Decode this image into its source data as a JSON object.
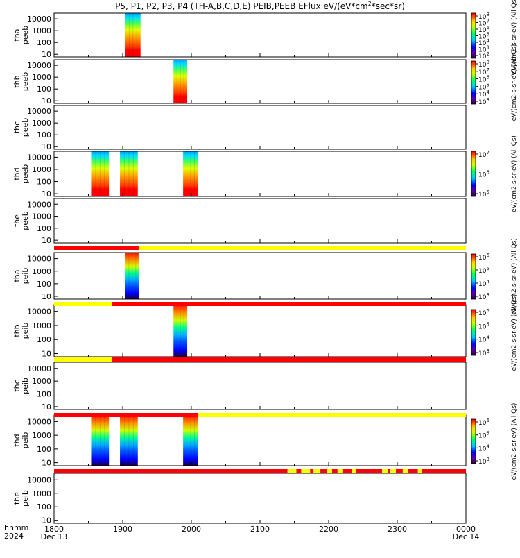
{
  "title": "P5, P1, P2, P3, P4 (TH-A,B,C,D,E) PEIB,PEEB EFlux eV/(eV*cm2*sec*sr)",
  "title_parts": {
    "main": "P5, P1, P2, P3, P4 (TH-A,B,C,D,E) PEIB,PEEB EFlux eV/(eV*cm",
    "sup": "2",
    "tail": "*sec*sr)"
  },
  "x_axis": {
    "corner_top": "hhmm",
    "corner_bottom": "2024",
    "range_hours": [
      18,
      24
    ],
    "ticks": [
      {
        "hour": 18,
        "label": "1800",
        "sublabel": "Dec 13"
      },
      {
        "hour": 19,
        "label": "1900",
        "sublabel": ""
      },
      {
        "hour": 20,
        "label": "2000",
        "sublabel": ""
      },
      {
        "hour": 21,
        "label": "2100",
        "sublabel": ""
      },
      {
        "hour": 22,
        "label": "2200",
        "sublabel": ""
      },
      {
        "hour": 23,
        "label": "2300",
        "sublabel": ""
      },
      {
        "hour": 24,
        "label": "0000",
        "sublabel": "Dec 14"
      }
    ]
  },
  "y_ticks": [
    "10000",
    "1000",
    "100",
    "10"
  ],
  "panels": [
    {
      "id": "tha-peeb",
      "probe": "tha",
      "species": "peeb",
      "bursts": [
        [
          19.04,
          19.26
        ]
      ]
    },
    {
      "id": "thb-peeb",
      "probe": "thb",
      "species": "peeb",
      "bursts": [
        [
          19.74,
          19.94
        ]
      ]
    },
    {
      "id": "thc-peeb",
      "probe": "thc",
      "species": "peeb",
      "bursts": []
    },
    {
      "id": "thd-peeb",
      "probe": "thd",
      "species": "peeb",
      "bursts": [
        [
          18.54,
          18.8
        ],
        [
          18.96,
          19.22
        ],
        [
          19.88,
          20.1
        ]
      ]
    },
    {
      "id": "the-peeb",
      "probe": "the",
      "species": "peeb",
      "bursts": []
    },
    {
      "id": "tha-peib",
      "probe": "tha",
      "species": "peib",
      "bursts": [
        [
          19.04,
          19.24
        ]
      ]
    },
    {
      "id": "thb-peib",
      "probe": "thb",
      "species": "peib",
      "bursts": [
        [
          19.74,
          19.94
        ]
      ]
    },
    {
      "id": "thc-peib",
      "probe": "thc",
      "species": "peib",
      "bursts": []
    },
    {
      "id": "thd-peib",
      "probe": "thd",
      "species": "peib",
      "bursts": [
        [
          18.54,
          18.8
        ],
        [
          18.96,
          19.22
        ],
        [
          19.88,
          20.1
        ]
      ]
    },
    {
      "id": "the-peib",
      "probe": "the",
      "species": "peib",
      "bursts": []
    }
  ],
  "mode_bars": [
    {
      "id": "mode-bar-1",
      "segments": [
        {
          "from": 18,
          "to": 19.24,
          "color": "#ff0000"
        },
        {
          "from": 19.24,
          "to": 24,
          "color": "#ffff00"
        }
      ]
    },
    {
      "id": "mode-bar-2",
      "segments": [
        {
          "from": 18,
          "to": 18.84,
          "color": "#ffff00"
        },
        {
          "from": 18.84,
          "to": 24,
          "color": "#ff0000"
        }
      ]
    },
    {
      "id": "mode-bar-3",
      "segments": [
        {
          "from": 18,
          "to": 18.84,
          "color": "#ffff00"
        },
        {
          "from": 18.84,
          "to": 24,
          "color": "#ff0000"
        }
      ]
    },
    {
      "id": "mode-bar-4",
      "segments": [
        {
          "from": 18,
          "to": 20.1,
          "color": "#ff0000"
        },
        {
          "from": 20.1,
          "to": 24,
          "color": "#ffff00"
        }
      ]
    },
    {
      "id": "mode-bar-5",
      "segments": [
        {
          "from": 18,
          "to": 21.4,
          "color": "#ff0000"
        },
        {
          "from": 21.4,
          "to": 21.53,
          "color": "#ffff00"
        },
        {
          "from": 21.53,
          "to": 21.6,
          "color": "#ff0000"
        },
        {
          "from": 21.6,
          "to": 21.73,
          "color": "#ffff00"
        },
        {
          "from": 21.73,
          "to": 21.78,
          "color": "#ff0000"
        },
        {
          "from": 21.78,
          "to": 21.88,
          "color": "#ffff00"
        },
        {
          "from": 21.88,
          "to": 21.98,
          "color": "#ff0000"
        },
        {
          "from": 21.98,
          "to": 22.05,
          "color": "#ffff00"
        },
        {
          "from": 22.05,
          "to": 22.13,
          "color": "#ff0000"
        },
        {
          "from": 22.13,
          "to": 22.2,
          "color": "#ffff00"
        },
        {
          "from": 22.2,
          "to": 22.34,
          "color": "#ff0000"
        },
        {
          "from": 22.34,
          "to": 22.4,
          "color": "#ffff00"
        },
        {
          "from": 22.4,
          "to": 22.78,
          "color": "#ff0000"
        },
        {
          "from": 22.78,
          "to": 22.86,
          "color": "#ffff00"
        },
        {
          "from": 22.86,
          "to": 22.9,
          "color": "#ff0000"
        },
        {
          "from": 22.9,
          "to": 22.98,
          "color": "#ffff00"
        },
        {
          "from": 22.98,
          "to": 23.08,
          "color": "#ff0000"
        },
        {
          "from": 23.08,
          "to": 23.16,
          "color": "#ffff00"
        },
        {
          "from": 23.16,
          "to": 23.3,
          "color": "#ff0000"
        },
        {
          "from": 23.3,
          "to": 23.36,
          "color": "#ffff00"
        },
        {
          "from": 23.36,
          "to": 24,
          "color": "#ff0000"
        }
      ]
    }
  ],
  "colorbars": [
    {
      "id": "cbar-1",
      "ticks": [
        {
          "b": "10",
          "e": "8"
        },
        {
          "b": "10",
          "e": "7"
        },
        {
          "b": "10",
          "e": "6"
        },
        {
          "b": "10",
          "e": "5"
        },
        {
          "b": "10",
          "e": "4"
        },
        {
          "b": "10",
          "e": "3"
        },
        {
          "b": "10",
          "e": "2"
        }
      ],
      "label": "eV/(cm2-s-sr-eV) (All Qs)"
    },
    {
      "id": "cbar-2",
      "ticks": [
        {
          "b": "10",
          "e": "8"
        },
        {
          "b": "10",
          "e": "7"
        },
        {
          "b": "10",
          "e": "6"
        },
        {
          "b": "10",
          "e": "5"
        },
        {
          "b": "10",
          "e": "4"
        },
        {
          "b": "10",
          "e": "3"
        }
      ],
      "label": "eV/(cm2-s-sr-eV) (All Qs)"
    },
    {
      "id": "cbar-3",
      "ticks": [
        {
          "b": "10",
          "e": "7"
        },
        {
          "b": "10",
          "e": "6"
        },
        {
          "b": "10",
          "e": "5"
        }
      ],
      "label": "eV/(cm2-s-sr-eV) (All Qs)"
    },
    {
      "id": "cbar-4",
      "ticks": [
        {
          "b": "10",
          "e": "6"
        },
        {
          "b": "10",
          "e": "5"
        },
        {
          "b": "10",
          "e": "4"
        },
        {
          "b": "10",
          "e": "3"
        }
      ],
      "label": "eV/(cm2-s-sr-eV) (All Qs)"
    },
    {
      "id": "cbar-5",
      "ticks": [
        {
          "b": "10",
          "e": "6"
        },
        {
          "b": "10",
          "e": "5"
        },
        {
          "b": "10",
          "e": "4"
        },
        {
          "b": "10",
          "e": "3"
        }
      ],
      "label": "eV/(cm2-s-sr-eV) (All Qs)"
    },
    {
      "id": "cbar-6",
      "ticks": [
        {
          "b": "10",
          "e": "6"
        },
        {
          "b": "10",
          "e": "5"
        },
        {
          "b": "10",
          "e": "4"
        },
        {
          "b": "10",
          "e": "3"
        }
      ],
      "label": "eV/(cm2-s-sr-eV) (All Qs)"
    }
  ],
  "chart_data": {
    "type": "heatmap",
    "title": "P5, P1, P2, P3, P4 (TH-A,B,C,D,E) PEIB,PEEB EFlux eV/(eV*cm2*sec*sr)",
    "x": {
      "label": "hhmm 2024",
      "range": [
        "1800 Dec 13",
        "0000 Dec 14"
      ],
      "ticks": [
        "1800",
        "1900",
        "2000",
        "2100",
        "2200",
        "2300",
        "0000"
      ]
    },
    "y": {
      "scale": "log",
      "ticks": [
        10,
        100,
        1000,
        10000
      ]
    },
    "series": [
      {
        "name": "tha peeb",
        "active_intervals_hours": [
          [
            19.04,
            19.26
          ]
        ]
      },
      {
        "name": "thb peeb",
        "active_intervals_hours": [
          [
            19.74,
            19.94
          ]
        ]
      },
      {
        "name": "thc peeb",
        "active_intervals_hours": []
      },
      {
        "name": "thd peeb",
        "active_intervals_hours": [
          [
            18.54,
            18.8
          ],
          [
            18.96,
            19.22
          ],
          [
            19.88,
            20.1
          ]
        ]
      },
      {
        "name": "the peeb",
        "active_intervals_hours": []
      },
      {
        "name": "tha peib",
        "active_intervals_hours": [
          [
            19.04,
            19.24
          ]
        ]
      },
      {
        "name": "thb peib",
        "active_intervals_hours": [
          [
            19.74,
            19.94
          ]
        ]
      },
      {
        "name": "thc peib",
        "active_intervals_hours": []
      },
      {
        "name": "thd peib",
        "active_intervals_hours": [
          [
            18.54,
            18.8
          ],
          [
            18.96,
            19.22
          ],
          [
            19.88,
            20.1
          ]
        ]
      },
      {
        "name": "the peib",
        "active_intervals_hours": []
      }
    ],
    "colorbar_label": "eV/(cm2-s-sr-eV) (All Qs)",
    "colorscale": "rainbow (black-purple-blue-cyan-green-yellow-red)"
  }
}
